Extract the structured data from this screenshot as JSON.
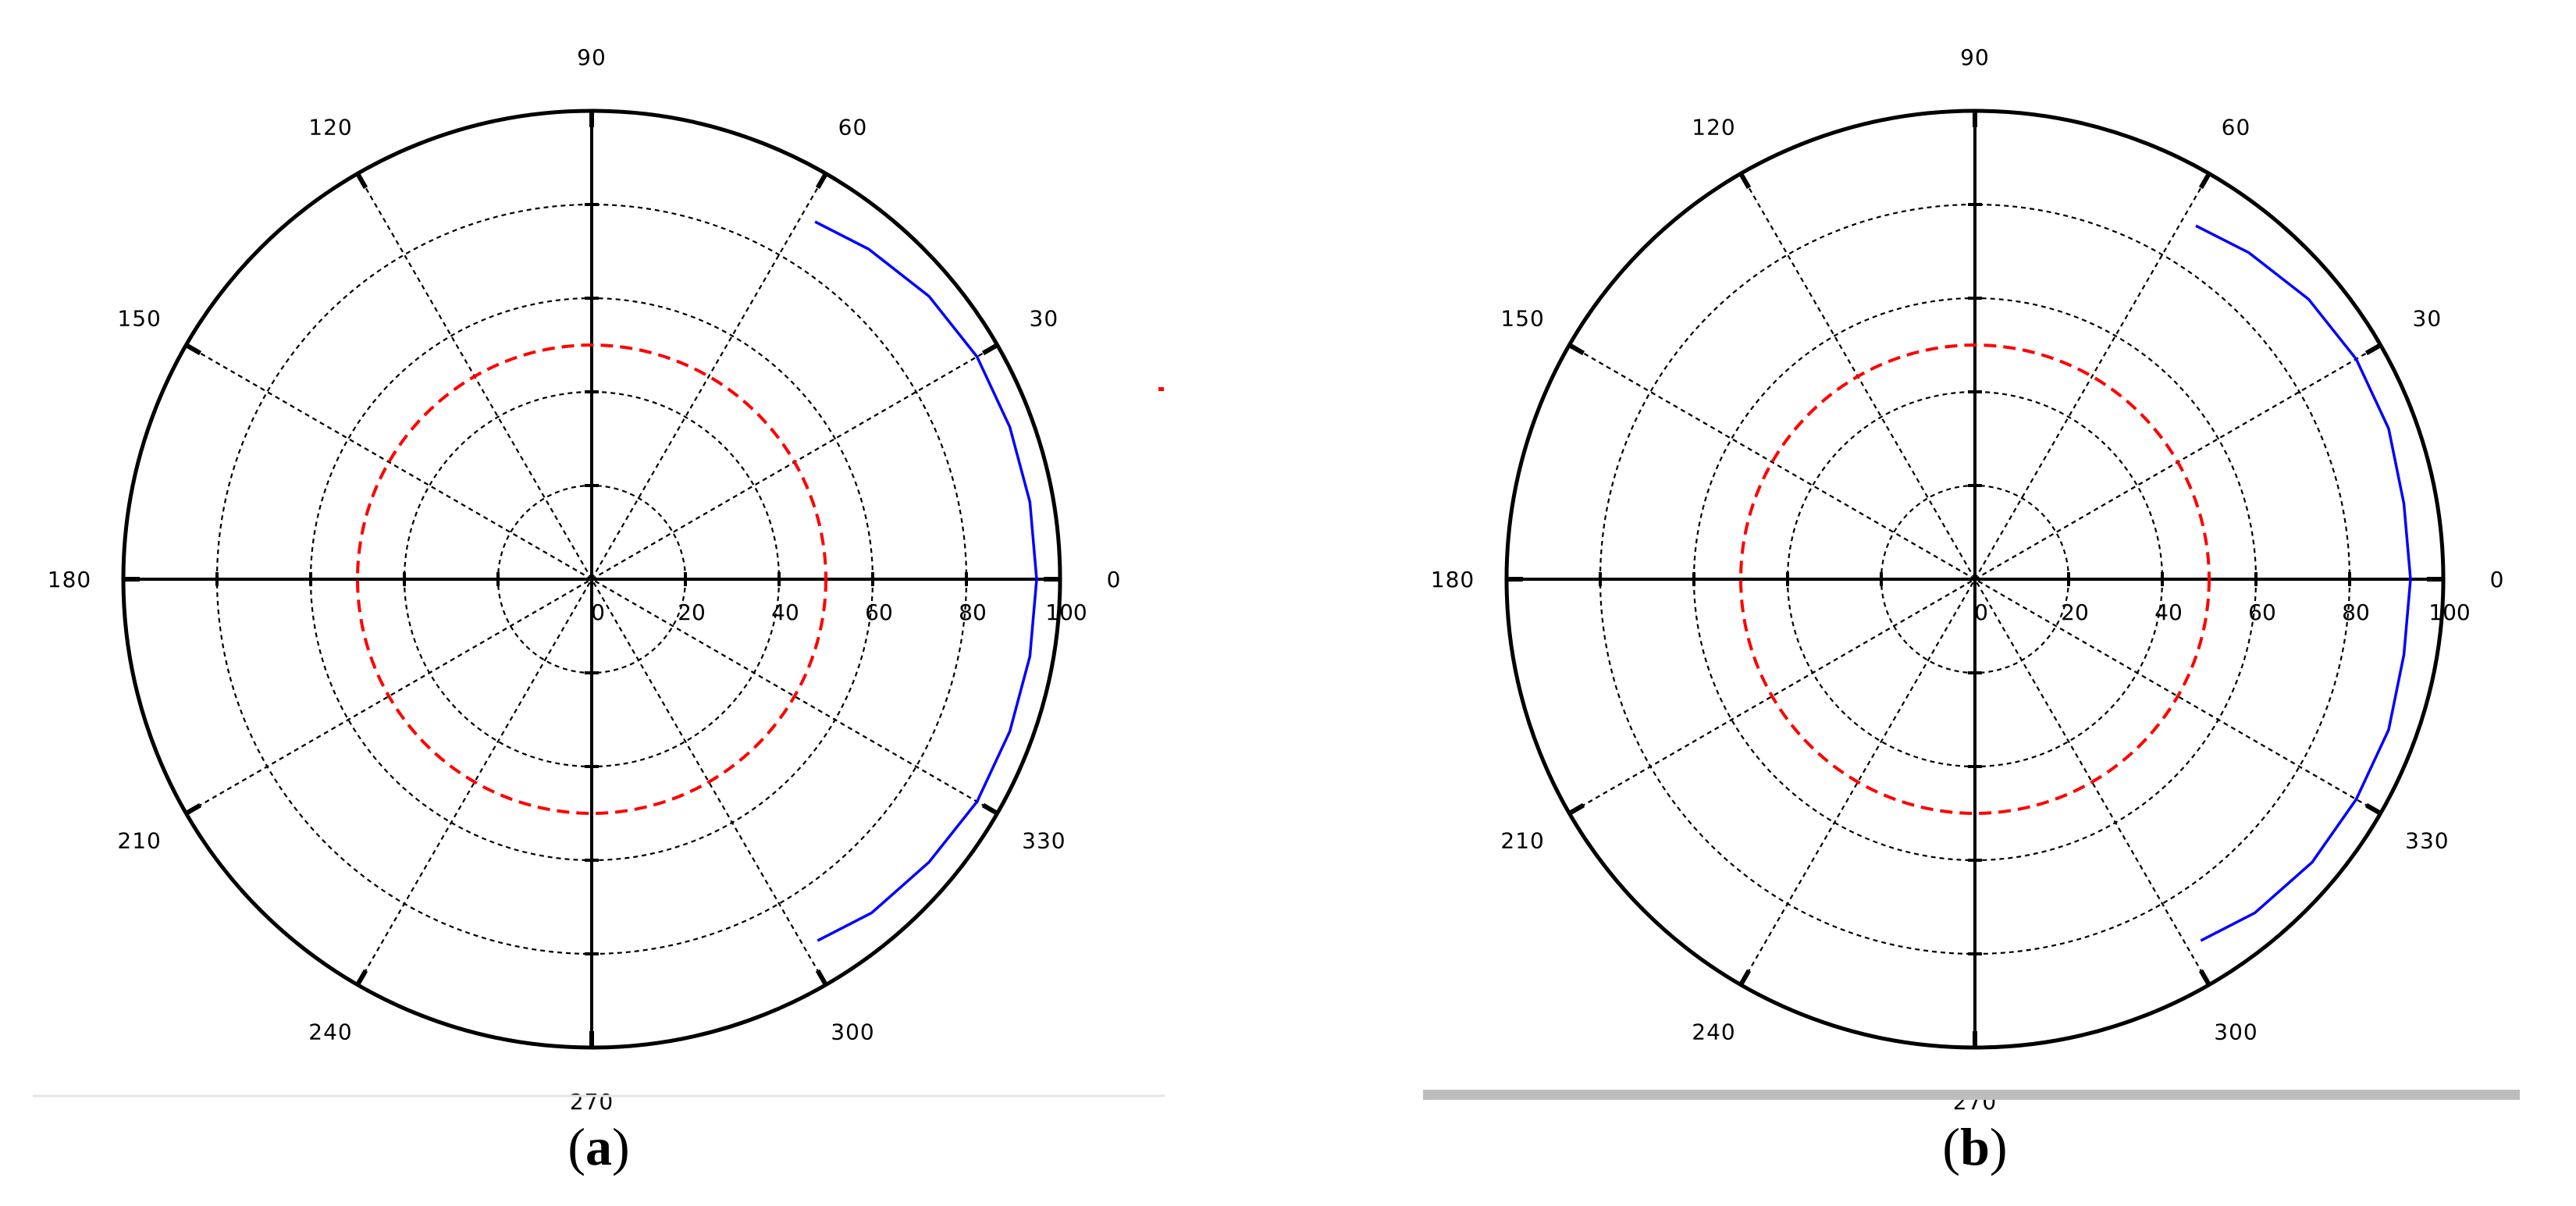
{
  "figure": {
    "panels": [
      {
        "caption_open": "(",
        "caption_letter": "a",
        "caption_close": ")",
        "chart_ref": 0
      },
      {
        "caption_open": "(",
        "caption_letter": "b",
        "caption_close": ")",
        "chart_ref": 1
      }
    ]
  },
  "colors": {
    "pattern": "#0000ff",
    "reference": "#ff0000",
    "axis": "#000000",
    "grid": "#000000",
    "divider_a": "#e6e6e6",
    "divider_b": "#bdbdbd"
  },
  "chart_data": [
    {
      "type": "polar-line",
      "title": "",
      "angle_ticks": [
        "0",
        "30",
        "60",
        "90",
        "120",
        "150",
        "180",
        "210",
        "240",
        "270",
        "300",
        "330"
      ],
      "angle_tick_values": [
        0,
        30,
        60,
        90,
        120,
        150,
        180,
        210,
        240,
        270,
        300,
        330
      ],
      "radial_ticks": [
        "0",
        "20",
        "40",
        "60",
        "80",
        "100"
      ],
      "radial_tick_values": [
        0,
        20,
        40,
        60,
        80,
        100
      ],
      "rlim": [
        0,
        100
      ],
      "grid": true,
      "series": [
        {
          "style": "solid-blue",
          "theta": [
            -58,
            -50,
            -40,
            -30,
            -20,
            -10,
            0,
            10,
            20,
            30,
            40,
            50,
            58
          ],
          "r": [
            91,
            93,
            94,
            95,
            95,
            95,
            95,
            95,
            95,
            95,
            94,
            92,
            90
          ]
        },
        {
          "style": "dashed-red",
          "theta_full_circle": true,
          "r_constant": 50
        }
      ]
    },
    {
      "type": "polar-line",
      "title": "",
      "angle_ticks": [
        "0",
        "30",
        "60",
        "90",
        "120",
        "150",
        "180",
        "210",
        "240",
        "270",
        "300",
        "330"
      ],
      "angle_tick_values": [
        0,
        30,
        60,
        90,
        120,
        150,
        180,
        210,
        240,
        270,
        300,
        330
      ],
      "radial_ticks": [
        "0",
        "20",
        "40",
        "60",
        "80",
        "100"
      ],
      "radial_tick_values": [
        0,
        20,
        40,
        60,
        80,
        100
      ],
      "rlim": [
        0,
        100
      ],
      "grid": true,
      "series": [
        {
          "style": "solid-blue",
          "theta": [
            -58,
            -50,
            -40,
            -30,
            -20,
            -10,
            0,
            10,
            20,
            30,
            40,
            50,
            58
          ],
          "r": [
            91,
            93,
            94,
            94,
            94,
            93,
            93,
            93,
            94,
            94,
            93,
            91,
            89
          ]
        },
        {
          "style": "dashed-red",
          "theta_full_circle": true,
          "r_constant": 50
        }
      ]
    }
  ]
}
